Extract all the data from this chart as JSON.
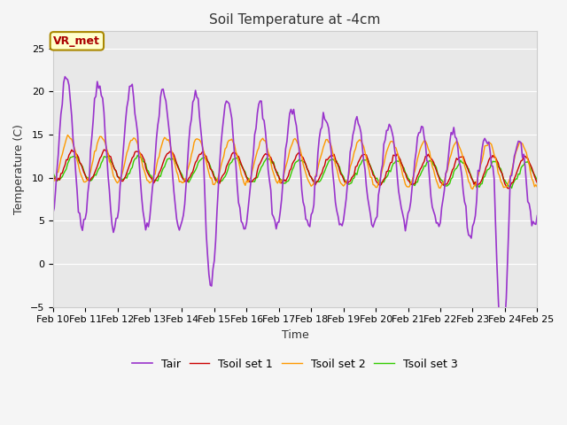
{
  "title": "Soil Temperature at -4cm",
  "xlabel": "Time",
  "ylabel": "Temperature (C)",
  "ylim": [
    -5,
    27
  ],
  "yticks": [
    -5,
    0,
    5,
    10,
    15,
    20,
    25
  ],
  "xlim": [
    0,
    360
  ],
  "x_tick_positions": [
    0,
    24,
    48,
    72,
    96,
    120,
    144,
    168,
    192,
    216,
    240,
    264,
    288,
    312,
    336,
    360
  ],
  "x_tick_labels": [
    "Feb 10",
    "Feb 11",
    "Feb 12",
    "Feb 13",
    "Feb 14",
    "Feb 15",
    "Feb 16",
    "Feb 17",
    "Feb 18",
    "Feb 19",
    "Feb 20",
    "Feb 21",
    "Feb 22",
    "Feb 23",
    "Feb 24",
    "Feb 25"
  ],
  "annotation_text": "VR_met",
  "annotation_color": "#aa0000",
  "annotation_bg": "#ffffcc",
  "annotation_border": "#aa8800",
  "plot_bg_color": "#e8e8e8",
  "fig_bg_color": "#f5f5f5",
  "grid_color": "#ffffff",
  "line_colors": {
    "Tair": "#9933cc",
    "Tsoil1": "#cc0000",
    "Tsoil2": "#ff9900",
    "Tsoil3": "#33cc00"
  },
  "legend_labels": [
    "Tair",
    "Tsoil set 1",
    "Tsoil set 2",
    "Tsoil set 3"
  ],
  "title_fontsize": 11,
  "axis_label_fontsize": 9,
  "tick_fontsize": 8,
  "legend_fontsize": 9
}
